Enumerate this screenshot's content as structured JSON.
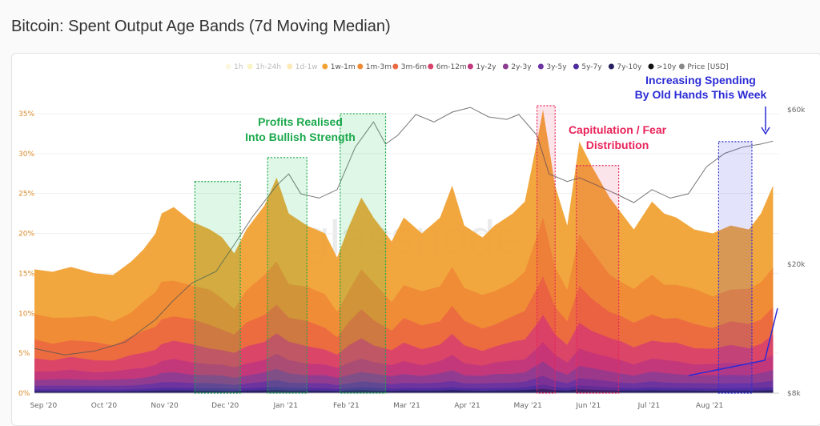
{
  "title": "Bitcoin: Spent Output Age Bands (7d Moving Median)",
  "watermark": "glassnode",
  "colors": {
    "bands": [
      "#f4e7a6",
      "#f1df5b",
      "#f5c431",
      "#f0a234",
      "#ef8a35",
      "#eb6a41",
      "#d9436a",
      "#c2387c",
      "#8e3c92",
      "#6b34a0",
      "#4f2d9e",
      "#262060",
      "#111111"
    ],
    "price": "#888888",
    "green": "#1aa84b",
    "red": "#e8245a",
    "blue": "#2b2bd6"
  },
  "chart_data": {
    "type": "area",
    "title": "Bitcoin: Spent Output Age Bands (7d Moving Median)",
    "legend_position": "top",
    "legend": [
      "1h",
      "1h-24h",
      "1d-1w",
      "1w-1m",
      "1m-3m",
      "3m-6m",
      "6m-12m",
      "1y-2y",
      "2y-3y",
      "3y-5y",
      "5y-7y",
      "7y-10y",
      ">10y",
      "Price [USD]"
    ],
    "legend_dimmed": [
      "1h",
      "1h-24h",
      "1d-1w"
    ],
    "x_labels": [
      "Sep '20",
      "Oct '20",
      "Nov '20",
      "Dec '20",
      "Jan '21",
      "Feb '21",
      "Mar '21",
      "Apr '21",
      "May '21",
      "Jun '21",
      "Jul '21",
      "Aug '21"
    ],
    "y_left": {
      "ticks": [
        "0%",
        "5%",
        "10%",
        "15%",
        "20%",
        "25%",
        "30%",
        "35%"
      ],
      "ylim": [
        0,
        35
      ],
      "unit": "%"
    },
    "y_right": {
      "ticks": [
        "$8k",
        "$20k",
        "$60k"
      ],
      "scale": "log",
      "ylim": [
        8000,
        60000
      ]
    },
    "x_points": [
      "Sep '20",
      "Oct '20",
      "Nov '20",
      "Dec '20",
      "Jan '21",
      "Feb '21",
      "Mar '21",
      "Apr '21",
      "May '21",
      "Jun '21",
      "Jul '21",
      "Aug '21"
    ],
    "series_total": [
      [
        0,
        15.5
      ],
      [
        0.3,
        15.2
      ],
      [
        0.6,
        15.8
      ],
      [
        1.0,
        15.0
      ],
      [
        1.3,
        14.8
      ],
      [
        1.6,
        16.5
      ],
      [
        1.8,
        18.0
      ],
      [
        2.0,
        20.0
      ],
      [
        2.1,
        22.5
      ],
      [
        2.3,
        23.3
      ],
      [
        2.6,
        21.5
      ],
      [
        2.9,
        20.5
      ],
      [
        3.1,
        19.5
      ],
      [
        3.3,
        17.5
      ],
      [
        3.5,
        20.5
      ],
      [
        3.8,
        23.5
      ],
      [
        4.0,
        27.0
      ],
      [
        4.2,
        22.5
      ],
      [
        4.5,
        21.0
      ],
      [
        4.8,
        20.0
      ],
      [
        5.0,
        17.0
      ],
      [
        5.2,
        21.0
      ],
      [
        5.4,
        24.5
      ],
      [
        5.6,
        22.0
      ],
      [
        5.9,
        19.0
      ],
      [
        6.1,
        22.0
      ],
      [
        6.4,
        20.0
      ],
      [
        6.7,
        22.0
      ],
      [
        6.9,
        26.0
      ],
      [
        7.1,
        21.0
      ],
      [
        7.4,
        19.5
      ],
      [
        7.6,
        21.0
      ],
      [
        7.9,
        22.5
      ],
      [
        8.1,
        24.0
      ],
      [
        8.3,
        31.5
      ],
      [
        8.4,
        35.5
      ],
      [
        8.6,
        26.0
      ],
      [
        8.8,
        21.0
      ],
      [
        9.0,
        31.5
      ],
      [
        9.2,
        28.5
      ],
      [
        9.5,
        24.5
      ],
      [
        9.7,
        22.5
      ],
      [
        9.9,
        20.5
      ],
      [
        10.2,
        24.0
      ],
      [
        10.4,
        22.5
      ],
      [
        10.6,
        22.0
      ],
      [
        10.9,
        20.5
      ],
      [
        11.2,
        20.0
      ],
      [
        11.5,
        21.0
      ],
      [
        11.8,
        20.5
      ],
      [
        12.0,
        22.5
      ],
      [
        12.2,
        26.0
      ]
    ],
    "series": [
      {
        "name": "1w-1m",
        "share": 1.0
      },
      {
        "name": "1m-3m",
        "share": 0.62
      },
      {
        "name": "3m-6m",
        "share": 0.42
      },
      {
        "name": "6m-12m",
        "share": 0.28
      },
      {
        "name": "1y-2y",
        "share": 0.18
      },
      {
        "name": "2y-3y",
        "share": 0.11
      },
      {
        "name": "3y-5y",
        "share": 0.06
      },
      {
        "name": "5y-7y",
        "share": 0.03
      },
      {
        "name": "7y-10y",
        "share": 0.015
      }
    ],
    "price_usd": [
      [
        0,
        11000
      ],
      [
        0.5,
        10500
      ],
      [
        1.0,
        10800
      ],
      [
        1.5,
        11500
      ],
      [
        2.0,
        13500
      ],
      [
        2.3,
        15500
      ],
      [
        2.6,
        17500
      ],
      [
        3.0,
        19000
      ],
      [
        3.3,
        23000
      ],
      [
        3.6,
        28000
      ],
      [
        4.0,
        35000
      ],
      [
        4.2,
        38000
      ],
      [
        4.4,
        33000
      ],
      [
        4.7,
        32000
      ],
      [
        5.0,
        34000
      ],
      [
        5.3,
        46000
      ],
      [
        5.6,
        55000
      ],
      [
        5.8,
        47000
      ],
      [
        6.0,
        50000
      ],
      [
        6.3,
        58000
      ],
      [
        6.6,
        55000
      ],
      [
        6.9,
        59000
      ],
      [
        7.2,
        61000
      ],
      [
        7.5,
        57000
      ],
      [
        7.8,
        56000
      ],
      [
        8.0,
        58000
      ],
      [
        8.3,
        50000
      ],
      [
        8.5,
        38000
      ],
      [
        8.8,
        36000
      ],
      [
        9.0,
        37000
      ],
      [
        9.3,
        35000
      ],
      [
        9.6,
        33000
      ],
      [
        9.9,
        31000
      ],
      [
        10.2,
        34000
      ],
      [
        10.5,
        32000
      ],
      [
        10.8,
        33000
      ],
      [
        11.1,
        40000
      ],
      [
        11.4,
        44000
      ],
      [
        11.7,
        46000
      ],
      [
        12.0,
        47000
      ],
      [
        12.2,
        48000
      ]
    ],
    "highlight_boxes": [
      {
        "from": 2.65,
        "to": 3.4,
        "top": 26.5,
        "color": "green"
      },
      {
        "from": 3.85,
        "to": 4.5,
        "top": 29.5,
        "color": "green"
      },
      {
        "from": 5.05,
        "to": 5.8,
        "top": 35,
        "color": "green"
      },
      {
        "from": 8.3,
        "to": 8.6,
        "top": 36,
        "color": "red"
      },
      {
        "from": 8.95,
        "to": 9.65,
        "top": 28.5,
        "color": "red"
      },
      {
        "from": 11.3,
        "to": 11.85,
        "top": 31.5,
        "color": "blue"
      }
    ],
    "annotations": [
      {
        "text": "Profits Realised",
        "color": "green"
      },
      {
        "text": "Into Bullish Strength",
        "color": "green"
      },
      {
        "text": "Capitulation / Fear",
        "color": "red"
      },
      {
        "text": "Distribution",
        "color": "red"
      },
      {
        "text": "Increasing Spending",
        "color": "blue"
      },
      {
        "text": "By Old Hands This Week",
        "color": "blue"
      }
    ]
  }
}
